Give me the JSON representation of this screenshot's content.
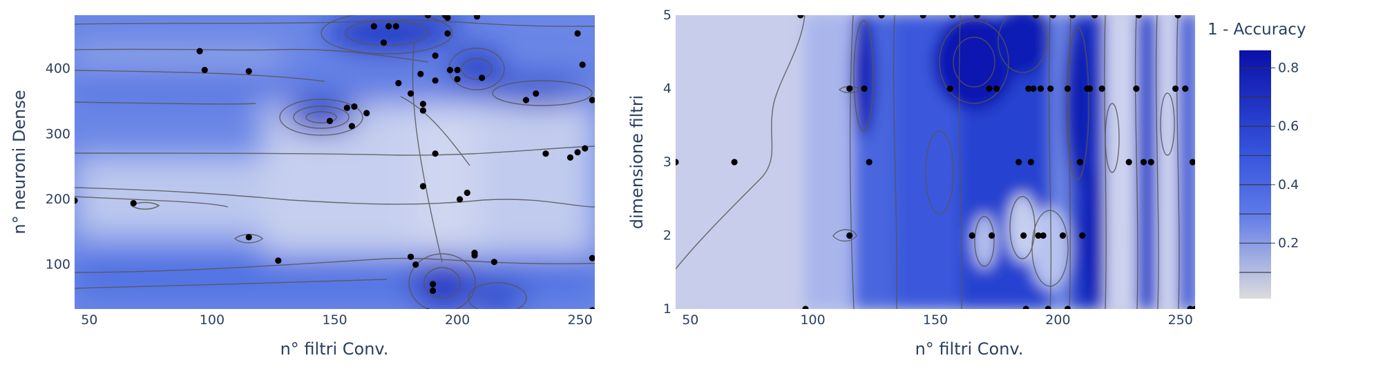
{
  "chart_data": [
    {
      "type": "contour",
      "xlabel": "n° filtri Conv.",
      "ylabel": "n° neuroni Dense",
      "xlim": [
        44,
        256
      ],
      "ylim": [
        32,
        482
      ],
      "xticks": [
        50,
        100,
        150,
        200,
        250
      ],
      "yticks": [
        100,
        200,
        300,
        400
      ],
      "points": [
        [
          44,
          198
        ],
        [
          68,
          194
        ],
        [
          95,
          427
        ],
        [
          97,
          398
        ],
        [
          115,
          142
        ],
        [
          115,
          396
        ],
        [
          127,
          106
        ],
        [
          148,
          320
        ],
        [
          155,
          340
        ],
        [
          157,
          312
        ],
        [
          158,
          342
        ],
        [
          163,
          332
        ],
        [
          166,
          465
        ],
        [
          170,
          440
        ],
        [
          172,
          465
        ],
        [
          175,
          465
        ],
        [
          176,
          378
        ],
        [
          181,
          112
        ],
        [
          181,
          362
        ],
        [
          183,
          100
        ],
        [
          185,
          392
        ],
        [
          186,
          220
        ],
        [
          186,
          336
        ],
        [
          186,
          346
        ],
        [
          188,
          28
        ],
        [
          188,
          482
        ],
        [
          190,
          70
        ],
        [
          190,
          60
        ],
        [
          191,
          420
        ],
        [
          191,
          270
        ],
        [
          191,
          382
        ],
        [
          195,
          482
        ],
        [
          196,
          454
        ],
        [
          196,
          478
        ],
        [
          197,
          398
        ],
        [
          200,
          384
        ],
        [
          200,
          398
        ],
        [
          201,
          200
        ],
        [
          204,
          210
        ],
        [
          207,
          118
        ],
        [
          207,
          114
        ],
        [
          208,
          480
        ],
        [
          210,
          386
        ],
        [
          215,
          104
        ],
        [
          228,
          352
        ],
        [
          232,
          362
        ],
        [
          236,
          270
        ],
        [
          246,
          264
        ],
        [
          249,
          272
        ],
        [
          252,
          278
        ],
        [
          249,
          454
        ],
        [
          251,
          406
        ],
        [
          255,
          352
        ],
        [
          255,
          110
        ],
        [
          255,
          30
        ]
      ]
    },
    {
      "type": "contour",
      "xlabel": "n° filtri Conv.",
      "ylabel": "dimensione filtri",
      "xlim": [
        44,
        256
      ],
      "ylim": [
        1,
        5
      ],
      "xticks": [
        50,
        100,
        150,
        200,
        250
      ],
      "yticks": [
        1,
        2,
        3,
        4,
        5
      ],
      "points": [
        [
          44,
          3
        ],
        [
          68,
          3
        ],
        [
          95,
          5
        ],
        [
          97,
          1
        ],
        [
          115,
          2
        ],
        [
          115,
          4
        ],
        [
          121,
          4
        ],
        [
          123,
          3
        ],
        [
          128,
          5
        ],
        [
          145,
          5
        ],
        [
          156,
          4
        ],
        [
          157,
          5
        ],
        [
          165,
          2
        ],
        [
          167,
          5
        ],
        [
          172,
          4
        ],
        [
          173,
          2
        ],
        [
          175,
          4
        ],
        [
          184,
          3
        ],
        [
          186,
          2
        ],
        [
          187,
          1
        ],
        [
          188,
          4
        ],
        [
          189,
          3
        ],
        [
          190,
          4
        ],
        [
          191,
          5
        ],
        [
          192,
          2
        ],
        [
          193,
          4
        ],
        [
          194,
          2
        ],
        [
          196,
          1
        ],
        [
          197,
          4
        ],
        [
          198,
          5
        ],
        [
          202,
          2
        ],
        [
          204,
          1
        ],
        [
          204,
          4
        ],
        [
          206,
          5
        ],
        [
          209,
          3
        ],
        [
          210,
          2
        ],
        [
          212,
          4
        ],
        [
          213,
          4
        ],
        [
          215,
          5
        ],
        [
          218,
          4
        ],
        [
          229,
          3
        ],
        [
          232,
          4
        ],
        [
          233,
          5
        ],
        [
          235,
          3
        ],
        [
          238,
          3
        ],
        [
          248,
          4
        ],
        [
          249,
          5
        ],
        [
          252,
          4
        ],
        [
          254,
          1
        ],
        [
          255,
          3
        ],
        [
          256,
          1
        ]
      ]
    }
  ],
  "colorbar": {
    "title": "1 - Accuracy",
    "ticks": [
      0.2,
      0.4,
      0.6,
      0.8
    ],
    "range": [
      0.01,
      0.86
    ],
    "colors": [
      "#dcdcdc",
      "#3d5ce0",
      "#0a10a8"
    ]
  }
}
